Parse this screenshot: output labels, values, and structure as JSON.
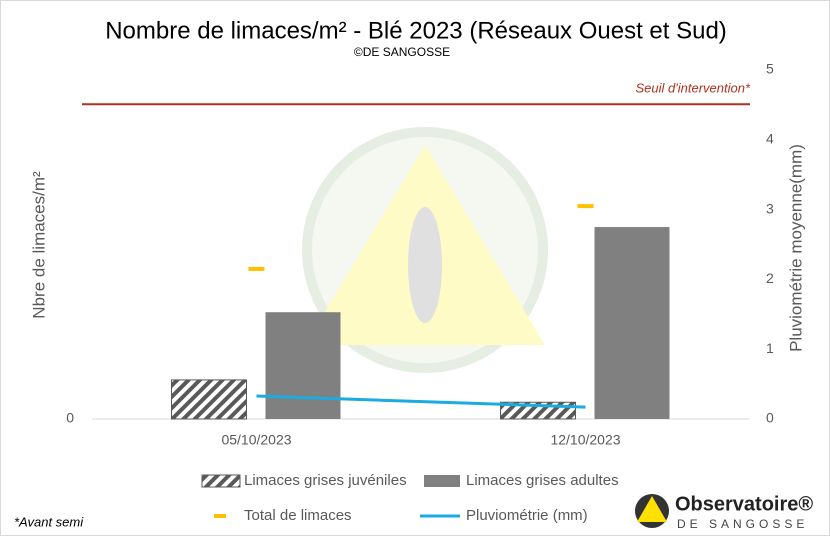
{
  "chart_data": {
    "type": "bar",
    "title": "Nombre de limaces/m² - Blé 2023 (Réseaux Ouest et Sud)",
    "subtitle": "©DE SANGOSSE",
    "y_label": "Nbre de limaces/m²",
    "y2_label": "Pluviométrie moyenne(mm)",
    "categories": [
      "05/10/2023",
      "12/10/2023"
    ],
    "series": [
      {
        "name": "Limaces grises juvéniles",
        "kind": "hatched",
        "color": "#595959",
        "values": [
          0.56,
          0.24
        ]
      },
      {
        "name": "Limaces grises adultes",
        "kind": "bar",
        "color": "#808080",
        "values": [
          1.53,
          2.75
        ]
      },
      {
        "name": "Total de limaces",
        "kind": "marker",
        "color": "#ffc000",
        "values": [
          2.15,
          3.05
        ]
      },
      {
        "name": "Pluviométrie (mm)",
        "kind": "line",
        "color": "#1aabe0",
        "axis": "y2",
        "values": [
          0.33,
          0.17
        ]
      }
    ],
    "threshold": {
      "label": "Seuil d'intervention*",
      "value": 4.51,
      "color": "#b03020"
    },
    "ylim": [
      0,
      5
    ],
    "yticks": [
      0
    ],
    "y2lim": [
      0,
      5
    ],
    "y2ticks": [
      0,
      1,
      2,
      3,
      4,
      5
    ],
    "footnote": "*Avant semi",
    "logo": {
      "name": "Observatoire®",
      "sub": "DE SANGOSSE"
    }
  }
}
